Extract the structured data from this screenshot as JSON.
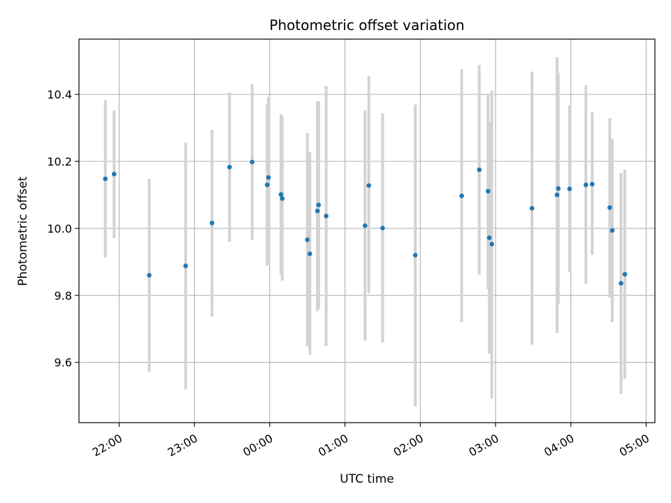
{
  "chart_data": {
    "type": "scatter",
    "title": "Photometric offset variation",
    "xlabel": "UTC time",
    "ylabel": "Photometric offset",
    "x_axis_type": "time",
    "x_start_date": "2000-01-01",
    "xlim": [
      "21:28",
      "05:07"
    ],
    "ylim": [
      9.42,
      10.565
    ],
    "x_ticks": [
      "22:00",
      "23:00",
      "00:00",
      "01:00",
      "02:00",
      "03:00",
      "04:00",
      "05:00"
    ],
    "y_ticks": [
      9.6,
      9.8,
      10.0,
      10.2,
      10.4
    ],
    "grid": true,
    "marker_color": "#1f77b4",
    "errorbar_color": "#d3d3d3",
    "points": [
      {
        "t": "21:49",
        "y": 10.148,
        "ylow": 9.913,
        "yhigh": 10.384
      },
      {
        "t": "21:56",
        "y": 10.162,
        "ylow": 9.971,
        "yhigh": 10.352
      },
      {
        "t": "22:24",
        "y": 9.86,
        "ylow": 9.571,
        "yhigh": 10.148
      },
      {
        "t": "22:53",
        "y": 9.888,
        "ylow": 9.519,
        "yhigh": 10.256
      },
      {
        "t": "23:14",
        "y": 10.016,
        "ylow": 9.737,
        "yhigh": 10.294
      },
      {
        "t": "23:28",
        "y": 10.183,
        "ylow": 9.96,
        "yhigh": 10.406
      },
      {
        "t": "23:46",
        "y": 10.198,
        "ylow": 9.966,
        "yhigh": 10.43
      },
      {
        "t": "23:58",
        "y": 10.13,
        "ylow": 9.889,
        "yhigh": 10.37
      },
      {
        "t": "23:59",
        "y": 10.152,
        "ylow": 9.899,
        "yhigh": 10.393
      },
      {
        "t": "00:09",
        "y": 10.101,
        "ylow": 9.862,
        "yhigh": 10.341
      },
      {
        "t": "00:10",
        "y": 10.089,
        "ylow": 9.844,
        "yhigh": 10.333
      },
      {
        "t": "00:30",
        "y": 9.966,
        "ylow": 9.648,
        "yhigh": 10.285
      },
      {
        "t": "00:32",
        "y": 9.924,
        "ylow": 9.622,
        "yhigh": 10.227
      },
      {
        "t": "00:38",
        "y": 10.052,
        "ylow": 9.753,
        "yhigh": 10.38
      },
      {
        "t": "00:39",
        "y": 10.07,
        "ylow": 9.76,
        "yhigh": 10.38
      },
      {
        "t": "00:45",
        "y": 10.037,
        "ylow": 9.649,
        "yhigh": 10.425
      },
      {
        "t": "01:16",
        "y": 10.008,
        "ylow": 9.665,
        "yhigh": 10.352
      },
      {
        "t": "01:19",
        "y": 10.128,
        "ylow": 9.807,
        "yhigh": 10.455
      },
      {
        "t": "01:30",
        "y": 10.001,
        "ylow": 9.659,
        "yhigh": 10.344
      },
      {
        "t": "01:56",
        "y": 9.92,
        "ylow": 9.469,
        "yhigh": 10.37
      },
      {
        "t": "02:33",
        "y": 10.097,
        "ylow": 9.72,
        "yhigh": 10.475
      },
      {
        "t": "02:47",
        "y": 10.175,
        "ylow": 9.862,
        "yhigh": 10.488
      },
      {
        "t": "02:54",
        "y": 10.111,
        "ylow": 9.818,
        "yhigh": 10.402
      },
      {
        "t": "02:55",
        "y": 9.972,
        "ylow": 9.626,
        "yhigh": 10.317
      },
      {
        "t": "02:57",
        "y": 9.953,
        "ylow": 9.493,
        "yhigh": 10.411
      },
      {
        "t": "03:29",
        "y": 10.06,
        "ylow": 9.653,
        "yhigh": 10.468
      },
      {
        "t": "03:49",
        "y": 10.1,
        "ylow": 9.688,
        "yhigh": 10.511
      },
      {
        "t": "03:50",
        "y": 10.119,
        "ylow": 9.775,
        "yhigh": 10.464
      },
      {
        "t": "03:59",
        "y": 10.118,
        "ylow": 9.869,
        "yhigh": 10.367
      },
      {
        "t": "04:12",
        "y": 10.13,
        "ylow": 9.834,
        "yhigh": 10.428
      },
      {
        "t": "04:17",
        "y": 10.132,
        "ylow": 9.921,
        "yhigh": 10.347
      },
      {
        "t": "04:31",
        "y": 10.062,
        "ylow": 9.793,
        "yhigh": 10.329
      },
      {
        "t": "04:33",
        "y": 9.994,
        "ylow": 9.72,
        "yhigh": 10.268
      },
      {
        "t": "04:40",
        "y": 9.836,
        "ylow": 9.506,
        "yhigh": 10.166
      },
      {
        "t": "04:43",
        "y": 9.863,
        "ylow": 9.55,
        "yhigh": 10.176
      }
    ]
  }
}
